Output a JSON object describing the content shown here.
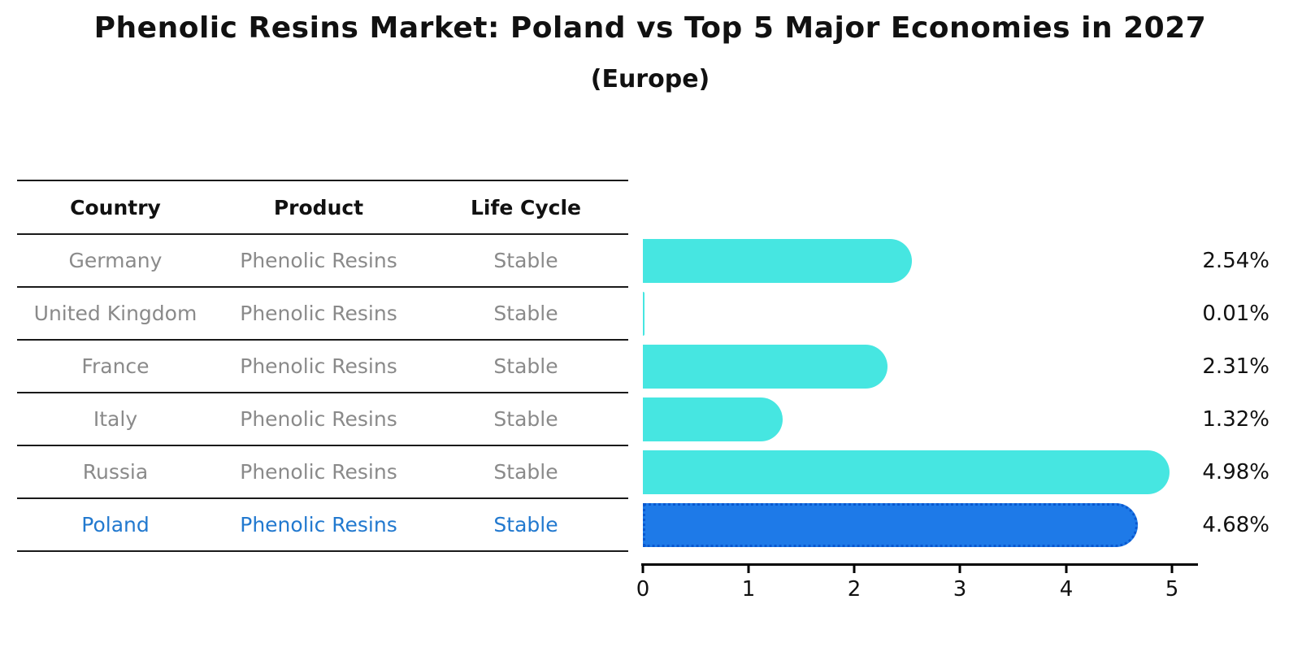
{
  "title": "Phenolic Resins Market: Poland vs Top 5 Major Economies in 2027",
  "subtitle": "(Europe)",
  "table": {
    "columns": [
      "Country",
      "Product",
      "Life Cycle"
    ],
    "rows": [
      {
        "country": "Germany",
        "product": "Phenolic Resins",
        "life_cycle": "Stable"
      },
      {
        "country": "United Kingdom",
        "product": "Phenolic Resins",
        "life_cycle": "Stable"
      },
      {
        "country": "France",
        "product": "Phenolic Resins",
        "life_cycle": "Stable"
      },
      {
        "country": "Italy",
        "product": "Phenolic Resins",
        "life_cycle": "Stable"
      },
      {
        "country": "Russia",
        "product": "Phenolic Resins",
        "life_cycle": "Stable"
      },
      {
        "country": "Poland",
        "product": "Phenolic Resins",
        "life_cycle": "Stable"
      }
    ],
    "highlight_row": "Poland"
  },
  "chart_data": {
    "type": "bar",
    "orientation": "horizontal",
    "title": "Phenolic Resins Market: Poland vs Top 5 Major Economies in 2027",
    "subtitle": "(Europe)",
    "categories": [
      "Germany",
      "United Kingdom",
      "France",
      "Italy",
      "Russia",
      "Poland"
    ],
    "values": [
      2.54,
      0.01,
      2.31,
      1.32,
      4.98,
      4.68
    ],
    "value_labels": [
      "2.54%",
      "0.01%",
      "2.31%",
      "1.32%",
      "4.98%",
      "4.68%"
    ],
    "x_ticks": [
      "0",
      "1",
      "2",
      "3",
      "4",
      "5"
    ],
    "x_tick_values": [
      0,
      1,
      2,
      3,
      4,
      5
    ],
    "xlim": [
      0,
      5.24
    ],
    "xlabel": "",
    "ylabel": "",
    "grid": false,
    "legend": false,
    "highlight_index": 5,
    "colors": {
      "bar": "#46E6E1",
      "highlight_bar": "#1E7AE8",
      "highlight_bar_border": "#0A58CF",
      "highlight_text": "#2279CF",
      "row_text": "#8A8A8A",
      "header_text": "#111111",
      "axis": "#000000"
    }
  }
}
